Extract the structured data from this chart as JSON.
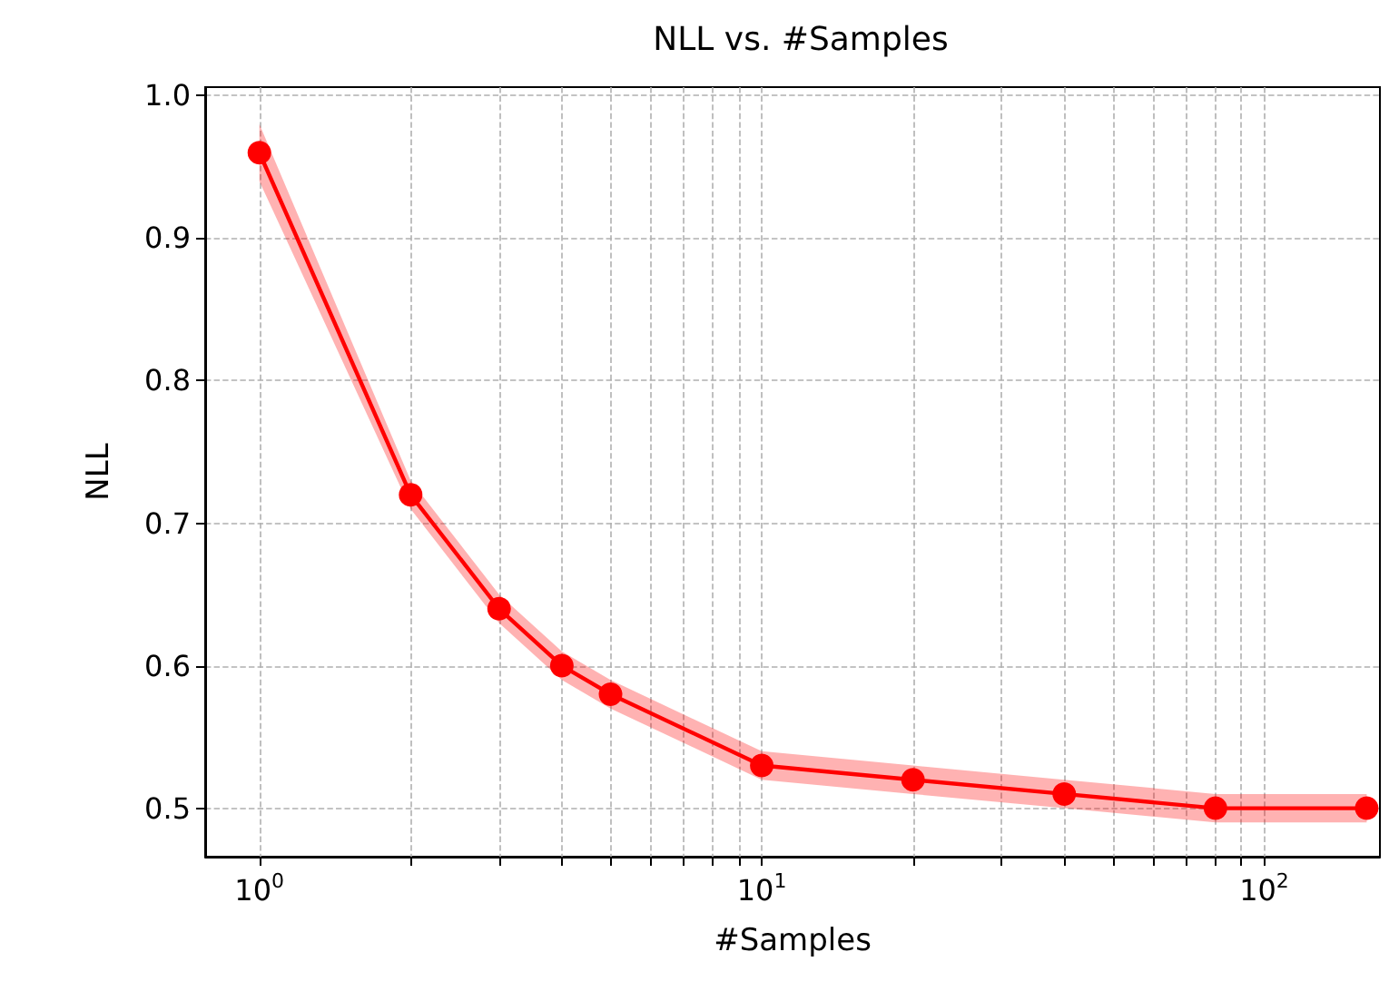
{
  "chart_data": {
    "type": "line",
    "title": "NLL vs. #Samples",
    "xlabel": "#Samples",
    "ylabel": "NLL",
    "log": "x",
    "grid": true,
    "marker": "circle",
    "line_style": "solid",
    "xlim": [
      0.78,
      170
    ],
    "ylim": [
      0.466,
      1.006
    ],
    "xticks": [
      {
        "value": 1,
        "label": "10$^{0}$"
      },
      {
        "value": 2,
        "label": null
      },
      {
        "value": 3,
        "label": null
      },
      {
        "value": 4,
        "label": null
      },
      {
        "value": 5,
        "label": null
      },
      {
        "value": 6,
        "label": null
      },
      {
        "value": 7,
        "label": null
      },
      {
        "value": 8,
        "label": null
      },
      {
        "value": 9,
        "label": null
      },
      {
        "value": 10,
        "label": "10$^{1}$"
      },
      {
        "value": 20,
        "label": null
      },
      {
        "value": 30,
        "label": null
      },
      {
        "value": 40,
        "label": null
      },
      {
        "value": 50,
        "label": null
      },
      {
        "value": 60,
        "label": null
      },
      {
        "value": 70,
        "label": null
      },
      {
        "value": 80,
        "label": null
      },
      {
        "value": 90,
        "label": null
      },
      {
        "value": 100,
        "label": "10$^{2}$"
      }
    ],
    "yticks": [
      0.5,
      0.6,
      0.7,
      0.8,
      0.9,
      {
        "value": 1.0,
        "label": "1.0"
      }
    ],
    "x": [
      1,
      2,
      3,
      4,
      5,
      10,
      20,
      40,
      80,
      160
    ],
    "series": [
      {
        "color": "#ff0000",
        "values": [
          0.96,
          0.72,
          0.64,
          0.6,
          0.58,
          0.53,
          0.52,
          0.51,
          0.5,
          0.5
        ],
        "lower": [
          0.94,
          0.71,
          0.63,
          0.59,
          0.57,
          0.52,
          0.51,
          0.5,
          0.49,
          0.49
        ],
        "upper": [
          0.98,
          0.73,
          0.65,
          0.61,
          0.59,
          0.54,
          0.53,
          0.52,
          0.51,
          0.51
        ]
      }
    ]
  }
}
